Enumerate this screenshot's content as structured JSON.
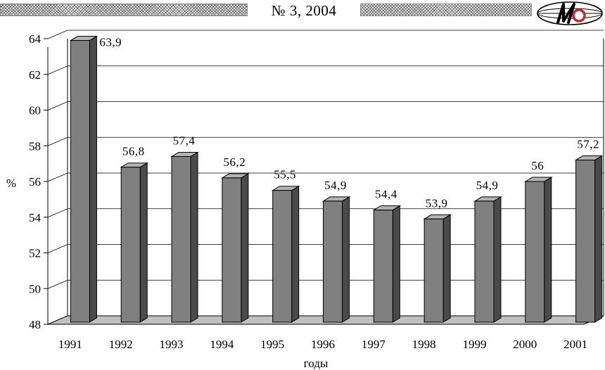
{
  "header": {
    "issue": "№ 3, 2004",
    "logo_icon": "journal-logo-icon"
  },
  "chart_data": {
    "type": "bar",
    "title": "",
    "xlabel": "годы",
    "ylabel": "%",
    "categories": [
      "1991",
      "1992",
      "1993",
      "1994",
      "1995",
      "1996",
      "1997",
      "1998",
      "1999",
      "2000",
      "2001"
    ],
    "values": [
      63.9,
      56.8,
      57.4,
      56.2,
      55.5,
      54.9,
      54.4,
      53.9,
      54.9,
      56,
      57.2
    ],
    "value_labels": [
      "63,9",
      "56,8",
      "57,4",
      "56,2",
      "55,5",
      "54,9",
      "54,4",
      "53,9",
      "54,9",
      "56",
      "57,2"
    ],
    "ylim": [
      48,
      64
    ],
    "yticks": [
      48,
      50,
      52,
      54,
      56,
      58,
      60,
      62,
      64
    ],
    "grid": true,
    "style": "3d-column",
    "colors": {
      "bar_front": "#808080",
      "bar_side": "#4a4a4a",
      "bar_top": "#b3b3b3",
      "floor": "#c0c0c0",
      "grid": "#000000"
    }
  }
}
